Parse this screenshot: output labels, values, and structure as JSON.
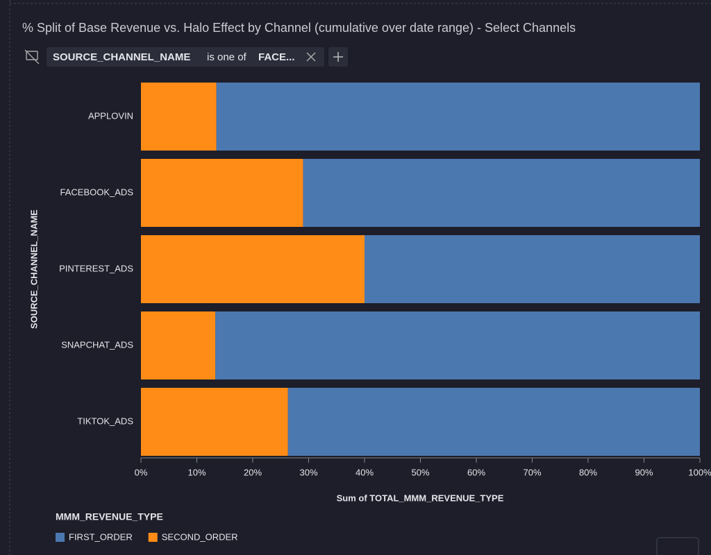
{
  "chart_data": {
    "type": "stacked_barh",
    "title": "% Split of Base Revenue vs. Halo Effect by Channel (cumulative over date range) - Select Channels",
    "categories": [
      "APPLOVIN",
      "FACEBOOK_ADS",
      "PINTEREST_ADS",
      "SNAPCHAT_ADS",
      "TIKTOK_ADS"
    ],
    "series": [
      {
        "name": "FIRST_ORDER",
        "color": "#4c78b0",
        "values": [
          86.5,
          71,
          60,
          86.7,
          73.7
        ]
      },
      {
        "name": "SECOND_ORDER",
        "color": "#ff8c16",
        "values": [
          13.5,
          29,
          40,
          13.3,
          26.3
        ]
      }
    ],
    "xlim": [
      0,
      100
    ],
    "xticks": [
      {
        "value": 0,
        "label": "0%"
      },
      {
        "value": 10,
        "label": "10%"
      },
      {
        "value": 20,
        "label": "20%"
      },
      {
        "value": 30,
        "label": "30%"
      },
      {
        "value": 40,
        "label": "40%"
      },
      {
        "value": 50,
        "label": "50%"
      },
      {
        "value": 60,
        "label": "60%"
      },
      {
        "value": 70,
        "label": "70%"
      },
      {
        "value": 80,
        "label": "80%"
      },
      {
        "value": 90,
        "label": "90%"
      },
      {
        "value": 100,
        "label": "100%"
      }
    ],
    "xlabel": "Sum of TOTAL_MMM_REVENUE_TYPE",
    "ylabel": "SOURCE_CHANNEL_NAME",
    "legend_title": "MMM_REVENUE_TYPE"
  },
  "filter": {
    "field": "SOURCE_CHANNEL_NAME",
    "operator": "is one of",
    "value": "FACE..."
  }
}
